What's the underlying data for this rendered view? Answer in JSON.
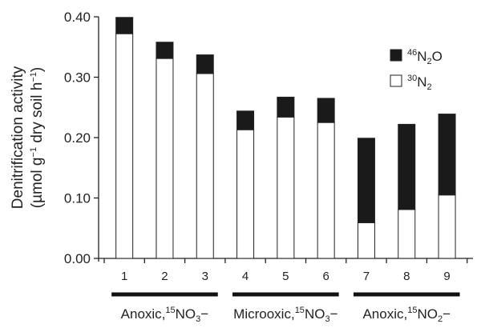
{
  "chart_data": {
    "type": "bar",
    "stacked": true,
    "categories": [
      "1",
      "2",
      "3",
      "4",
      "5",
      "6",
      "7",
      "8",
      "9"
    ],
    "series": [
      {
        "name": "30N2",
        "name_parts": {
          "sup": "30",
          "base": "N",
          "sub": "2",
          "tail": ""
        },
        "color": "#ffffff",
        "values": [
          0.372,
          0.331,
          0.306,
          0.213,
          0.234,
          0.225,
          0.059,
          0.081,
          0.105
        ]
      },
      {
        "name": "46N2O",
        "name_parts": {
          "sup": "46",
          "base": "N",
          "sub": "2",
          "tail": "O"
        },
        "color": "#1a1a1a",
        "values": [
          0.027,
          0.027,
          0.031,
          0.031,
          0.033,
          0.04,
          0.14,
          0.141,
          0.134
        ]
      }
    ],
    "ylabel_line1": "Denitrification activity",
    "ylabel_line2": {
      "a": "(µmol g",
      "sup1": "−1",
      "b": " dry soil h",
      "sup2": "−1",
      "c": ")"
    },
    "ylim": [
      0,
      0.4
    ],
    "yticks": [
      "0.00",
      "0.10",
      "0.20",
      "0.30",
      "0.40"
    ],
    "legend_position": "top-right",
    "groups": [
      {
        "from": 0,
        "to": 2,
        "prefix": "Anoxic,",
        "sup": "15",
        "base": "NO",
        "sub": "3",
        "tail": "−"
      },
      {
        "from": 3,
        "to": 5,
        "prefix": "Microoxic,",
        "sup": "15",
        "base": "NO",
        "sub": "3",
        "tail": "−"
      },
      {
        "from": 6,
        "to": 8,
        "prefix": "Anoxic,",
        "sup": "15",
        "base": "NO",
        "sub": "2",
        "tail": "−"
      }
    ]
  }
}
